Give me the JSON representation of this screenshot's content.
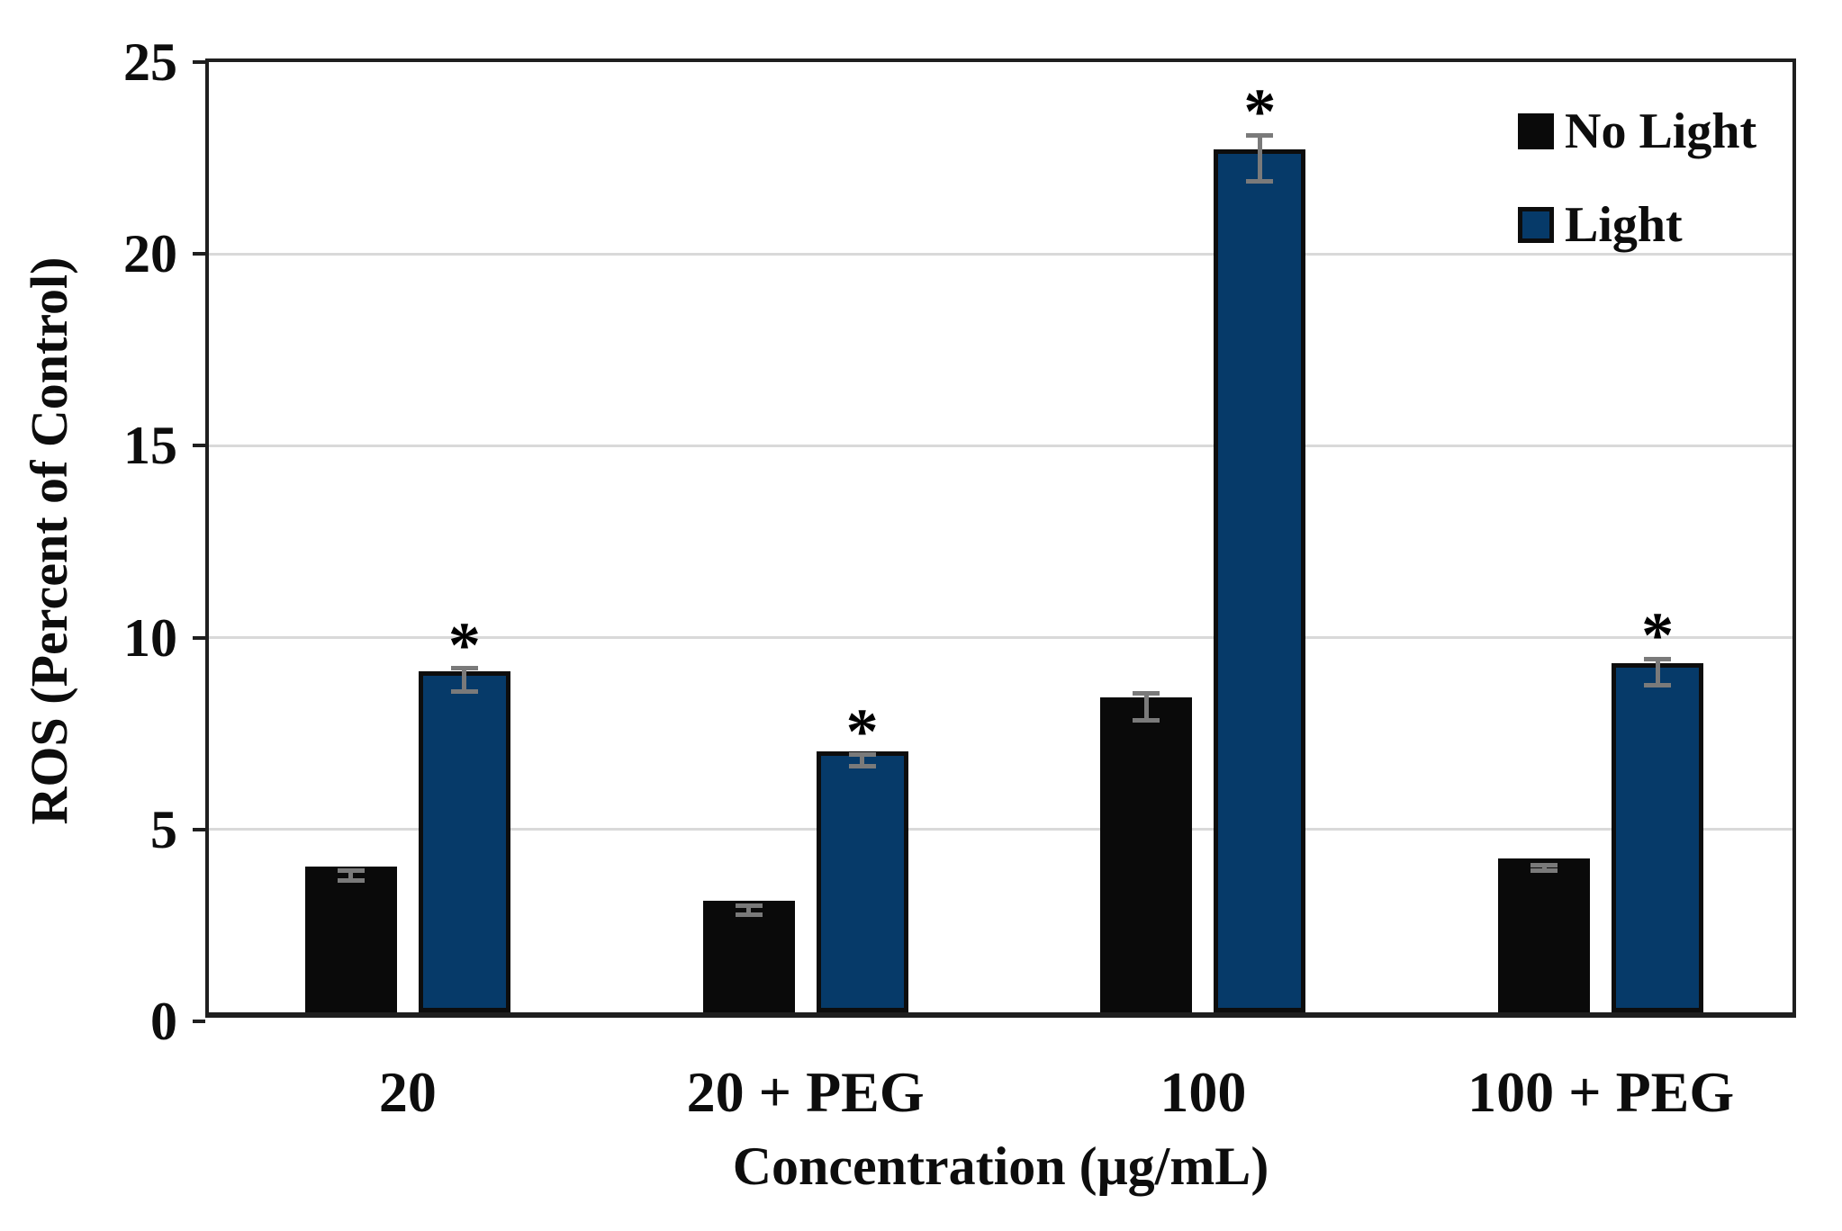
{
  "chart_data": {
    "type": "bar",
    "title": "",
    "xlabel": "Concentration (μg/mL)",
    "ylabel": "ROS (Percent of Control)",
    "ylim": [
      0,
      25
    ],
    "yticks": [
      0,
      5,
      10,
      15,
      20,
      25
    ],
    "grid": "horizontal-light-gray",
    "legend_position": "top-right-inside",
    "categories": [
      "20",
      "20 + PEG",
      "100",
      "100 + PEG"
    ],
    "series": [
      {
        "name": "No Light",
        "color": "#0a0a0a",
        "values": [
          3.8,
          2.9,
          8.2,
          4.0
        ],
        "errors": [
          0.12,
          0.12,
          0.35,
          0.08
        ],
        "significant": [
          false,
          false,
          false,
          false
        ]
      },
      {
        "name": "Light",
        "color": "#063a69",
        "values": [
          8.9,
          6.8,
          22.5,
          9.1
        ],
        "errors": [
          0.3,
          0.15,
          0.6,
          0.35
        ],
        "significant": [
          true,
          true,
          true,
          true
        ]
      }
    ],
    "annotations": {
      "significance_marker": "*"
    }
  },
  "colors": {
    "background": "#ffffff",
    "plot_border": "#1f1f1f",
    "gridline": "#d9d9d9",
    "error_bar": "#7a7a7a",
    "no_light_bar": "#0a0a0a",
    "light_bar": "#063a69",
    "text": "#0d0d0d"
  }
}
